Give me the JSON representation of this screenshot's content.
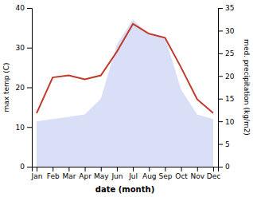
{
  "chart_data": {
    "type": "line",
    "categories": [
      "Jan",
      "Feb",
      "Mar",
      "Apr",
      "May",
      "Jun",
      "Jul",
      "Aug",
      "Sep",
      "Oct",
      "Nov",
      "Dec"
    ],
    "series": [
      {
        "type": "area",
        "axis": "y2",
        "color": "#b8c4ee",
        "values": [
          10.0,
          10.5,
          11.0,
          11.5,
          15.0,
          27.0,
          32.5,
          29.0,
          28.5,
          17.0,
          11.5,
          10.5
        ]
      },
      {
        "type": "line",
        "color": "#c0392b",
        "values": [
          13.5,
          22.5,
          23.0,
          22.0,
          23.0,
          29.0,
          36.0,
          33.5,
          32.5,
          25.0,
          17.0,
          13.5
        ]
      }
    ],
    "x_label": "date (month)",
    "y_label": "max temp (C)",
    "y2_label": "med. precipitation (kg/m2)",
    "ylim": [
      0,
      40
    ],
    "yticks": [
      0,
      10,
      20,
      30,
      40
    ],
    "y2lim": [
      0,
      35
    ],
    "y2ticks": [
      0,
      5,
      10,
      15,
      20,
      25,
      30,
      35
    ]
  }
}
